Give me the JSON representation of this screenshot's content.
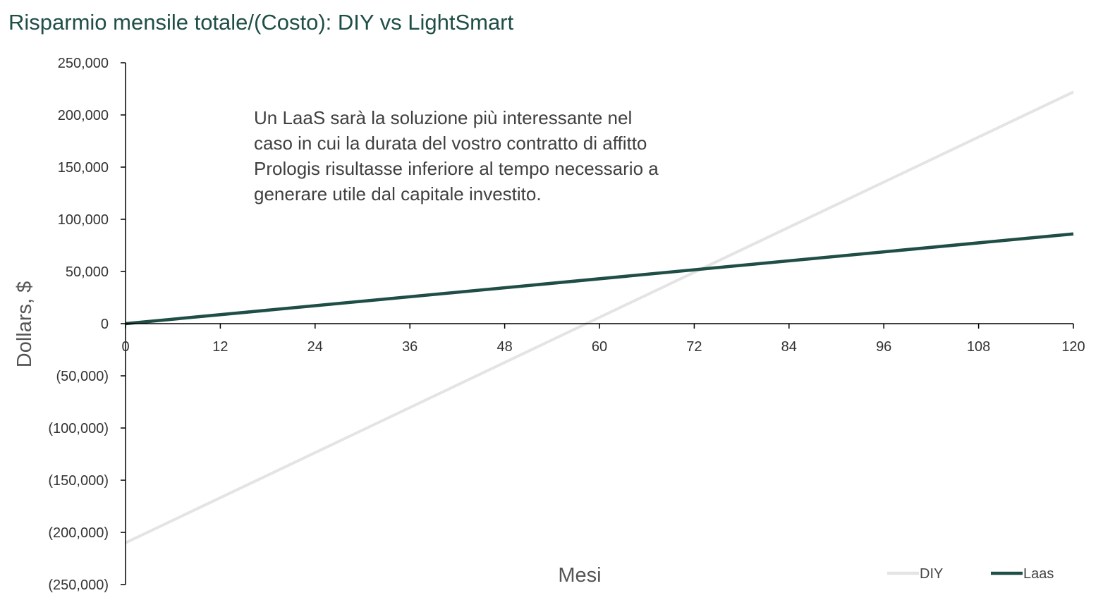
{
  "chart_data": {
    "type": "line",
    "title": "Risparmio mensile totale/(Costo): DIY vs LightSmart",
    "xlabel": "Mesi",
    "ylabel": "Dollars, $",
    "xlim": [
      0,
      120
    ],
    "ylim": [
      -250000,
      250000
    ],
    "x_ticks": [
      "0",
      "12",
      "24",
      "36",
      "48",
      "60",
      "72",
      "84",
      "96",
      "108",
      "120"
    ],
    "y_ticks": [
      {
        "value": 250000,
        "label": "250,000"
      },
      {
        "value": 200000,
        "label": "200,000"
      },
      {
        "value": 150000,
        "label": "150,000"
      },
      {
        "value": 100000,
        "label": "100,000"
      },
      {
        "value": 50000,
        "label": "50,000"
      },
      {
        "value": 0,
        "label": "0"
      },
      {
        "value": -50000,
        "label": "(50,000)"
      },
      {
        "value": -100000,
        "label": "(100,000)"
      },
      {
        "value": -150000,
        "label": "(150,000)"
      },
      {
        "value": -200000,
        "label": "(200,000)"
      },
      {
        "value": -250000,
        "label": "(250,000)"
      }
    ],
    "series": [
      {
        "name": "DIY",
        "color": "#e4e4e4",
        "x": [
          0,
          120
        ],
        "y": [
          -210000,
          222000
        ]
      },
      {
        "name": "Laas",
        "color": "#1f4e46",
        "x": [
          0,
          120
        ],
        "y": [
          0,
          86000
        ]
      }
    ],
    "annotation": [
      "Un LaaS  sarà la soluzione più interessante nel",
      "caso in cui la durata del vostro contratto di affitto",
      "Prologis risultasse inferiore al tempo necessario a",
      "generare utile dal capitale investito."
    ],
    "legend_position": "bottom-right",
    "grid": false,
    "title_color": "#1f4e46",
    "axis_color": "#000000"
  }
}
